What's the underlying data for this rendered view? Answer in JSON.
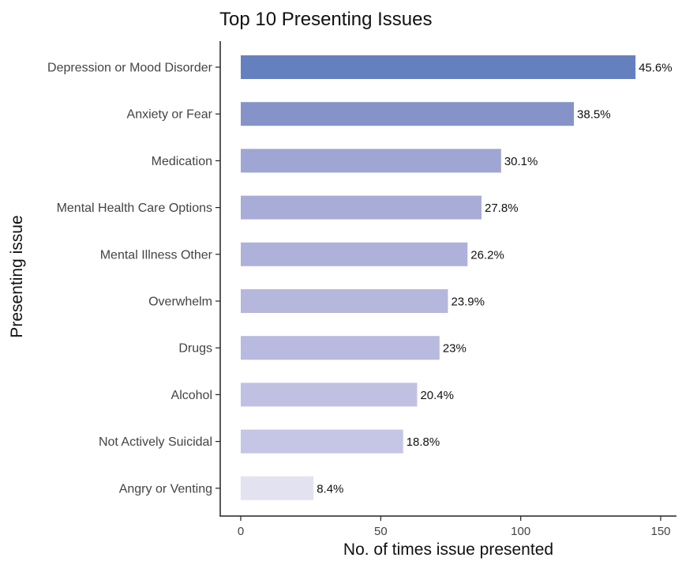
{
  "chart_data": {
    "type": "bar",
    "orientation": "horizontal",
    "title": "Top 10 Presenting Issues",
    "xlabel": "No. of times issue presented",
    "ylabel": "Presenting issue",
    "xlim": [
      0,
      155
    ],
    "xticks": [
      0,
      50,
      100,
      150
    ],
    "categories": [
      "Depression or Mood Disorder",
      "Anxiety or Fear",
      "Medication",
      "Mental Health Care Options",
      "Mental Illness  Other",
      "Overwhelm",
      "Drugs",
      "Alcohol",
      "Not Actively Suicidal",
      "Angry or Venting"
    ],
    "values": [
      141,
      119,
      93,
      86,
      81,
      74,
      71,
      63,
      58,
      26
    ],
    "labels": [
      "45.6%",
      "38.5%",
      "30.1%",
      "27.8%",
      "26.2%",
      "23.9%",
      "23%",
      "20.4%",
      "18.8%",
      "8.4%"
    ],
    "colors": [
      "#6580bf",
      "#8593c9",
      "#a0a6d3",
      "#a9acd7",
      "#aeb1d9",
      "#b5b7dd",
      "#b8badf",
      "#c0c1e2",
      "#c5c6e5",
      "#e2e2f1"
    ],
    "grid": false
  }
}
